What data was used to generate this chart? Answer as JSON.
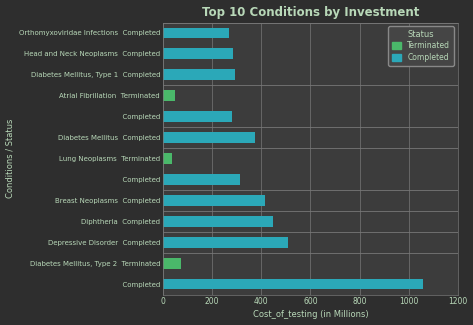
{
  "title": "Top 10 Conditions by Investment",
  "xlabel": "Cost_of_testing (in Millions)",
  "ylabel": "Conditions / Status",
  "background_color": "#2e2e2e",
  "plot_bg_color": "#3c3c3c",
  "text_color": "#b8d8b8",
  "grid_color": "#777777",
  "completed_color": "#2ba8b8",
  "terminated_color": "#4ab86a",
  "legend_bg": "#454545",
  "legend_edge": "#888888",
  "rows": [
    {
      "condition": "Orthomyxoviridae Infections",
      "status": "Completed",
      "value": 270,
      "type": "Completed"
    },
    {
      "condition": "Head and Neck Neoplasms",
      "status": "Completed",
      "value": 285,
      "type": "Completed"
    },
    {
      "condition": "Diabetes Mellitus, Type 1",
      "status": "Completed",
      "value": 295,
      "type": "Completed"
    },
    {
      "condition": "Atrial Fibrillation",
      "status": "Terminated",
      "value": 48,
      "type": "Terminated"
    },
    {
      "condition": "",
      "status": "Completed",
      "value": 280,
      "type": "Completed"
    },
    {
      "condition": "Diabetes Mellitus",
      "status": "Completed",
      "value": 375,
      "type": "Completed"
    },
    {
      "condition": "Lung Neoplasms",
      "status": "Terminated",
      "value": 38,
      "type": "Terminated"
    },
    {
      "condition": "",
      "status": "Completed",
      "value": 315,
      "type": "Completed"
    },
    {
      "condition": "Breast Neoplasms",
      "status": "Completed",
      "value": 415,
      "type": "Completed"
    },
    {
      "condition": "Diphtheria",
      "status": "Completed",
      "value": 450,
      "type": "Completed"
    },
    {
      "condition": "Depressive Disorder",
      "status": "Completed",
      "value": 510,
      "type": "Completed"
    },
    {
      "condition": "Diabetes Mellitus, Type 2",
      "status": "Terminated",
      "value": 72,
      "type": "Terminated"
    },
    {
      "condition": "",
      "status": "Completed",
      "value": 1060,
      "type": "Completed"
    }
  ],
  "group_separators": [
    9.5,
    7.5,
    6.5,
    4.5,
    3.5,
    2.5,
    1.5
  ],
  "xlim": [
    0,
    1200
  ],
  "xticks": [
    0,
    200,
    400,
    600,
    800,
    1000,
    1200
  ]
}
